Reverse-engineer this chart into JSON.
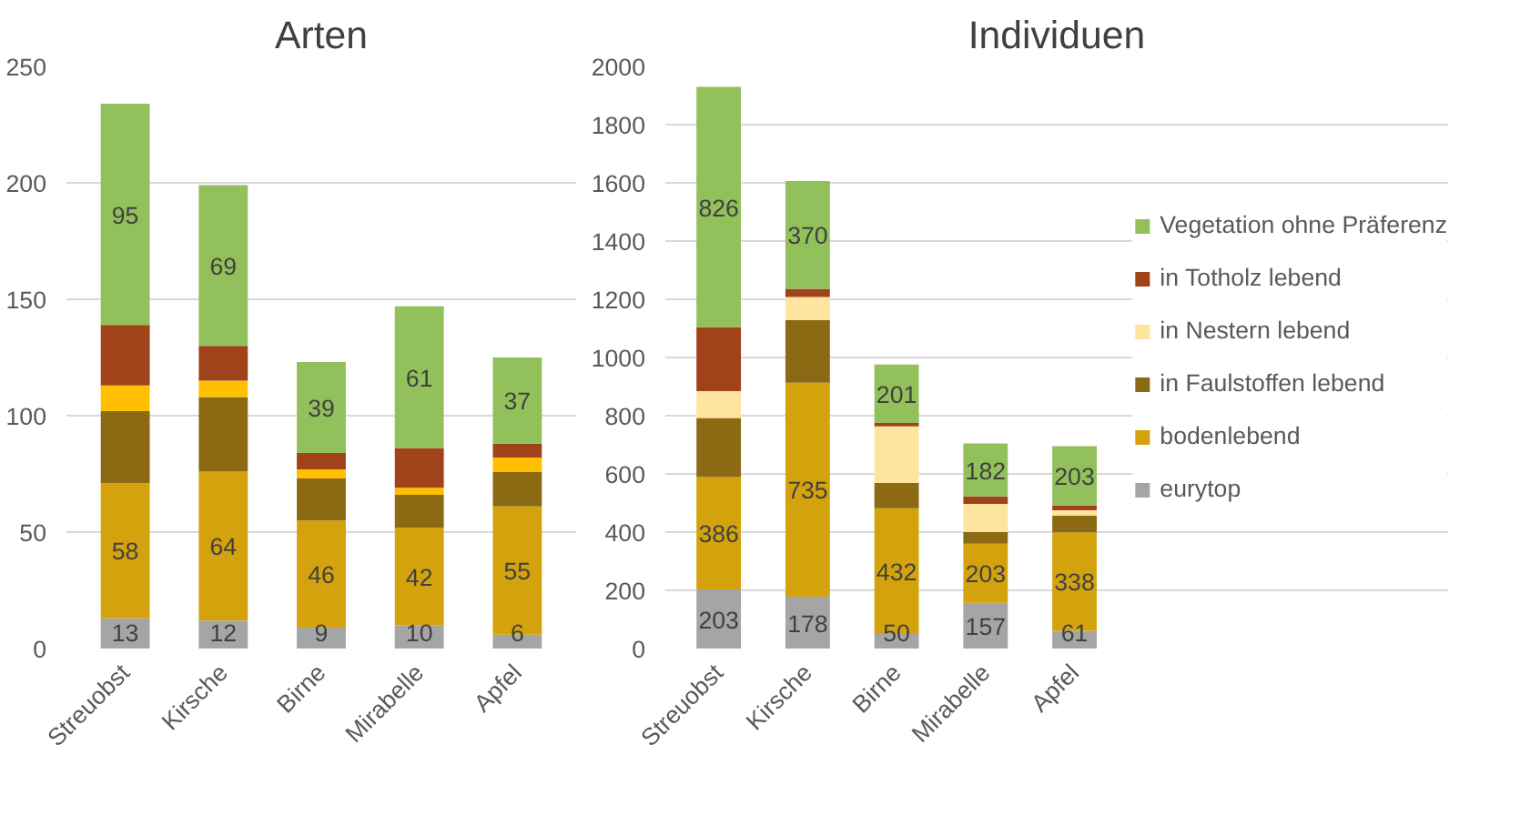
{
  "chart_data": [
    {
      "type": "bar",
      "title": "Arten",
      "stacked": true,
      "grid": "y",
      "categories": [
        "Streuobst",
        "Kirsche",
        "Birne",
        "Mirabelle",
        "Apfel"
      ],
      "ylim": [
        0,
        250
      ],
      "yticks": [
        0,
        50,
        100,
        150,
        200,
        250
      ],
      "series": [
        {
          "color": "#a5a5a5",
          "values": [
            13,
            12,
            9,
            10,
            6
          ],
          "value_labels": [
            "13",
            "12",
            "9",
            "10",
            "6"
          ]
        },
        {
          "color": "#d4a20c",
          "values": [
            58,
            64,
            46,
            42,
            55
          ],
          "value_labels": [
            "58",
            "64",
            "46",
            "42",
            "55"
          ]
        },
        {
          "color": "#8c6a14",
          "values": [
            31,
            32,
            18,
            14,
            15
          ]
        },
        {
          "color": "#ffc000",
          "values": [
            11,
            7,
            4,
            3,
            6
          ]
        },
        {
          "color": "#a0431a",
          "values": [
            26,
            15,
            7,
            17,
            6
          ]
        },
        {
          "color": "#92c05a",
          "values": [
            95,
            69,
            39,
            61,
            37
          ],
          "value_labels": [
            "95",
            "69",
            "39",
            "61",
            "37"
          ]
        }
      ]
    },
    {
      "type": "bar",
      "title": "Individuen",
      "stacked": true,
      "grid": "y",
      "legend": "right",
      "categories": [
        "Streuobst",
        "Kirsche",
        "Birne",
        "Mirabelle",
        "Apfel"
      ],
      "ylim": [
        0,
        2000
      ],
      "yticks": [
        0,
        200,
        400,
        600,
        800,
        1000,
        1200,
        1400,
        1600,
        1800,
        2000
      ],
      "series": [
        {
          "name": "eurytop",
          "color": "#a5a5a5",
          "values": [
            203,
            178,
            50,
            157,
            61
          ],
          "value_labels": [
            "203",
            "178",
            "50",
            "157",
            "61"
          ]
        },
        {
          "name": "bodenlebend",
          "color": "#d4a20c",
          "values": [
            386,
            735,
            432,
            203,
            338
          ],
          "value_labels": [
            "386",
            "735",
            "432",
            "203",
            "338"
          ]
        },
        {
          "name": "in Faulstoffen lebend",
          "color": "#8c6a14",
          "values": [
            203,
            215,
            87,
            41,
            57
          ]
        },
        {
          "name": "in Nestern lebend",
          "color": "#ffe4a0",
          "values": [
            92,
            80,
            194,
            96,
            19
          ]
        },
        {
          "name": "in Totholz lebend",
          "color": "#a0431a",
          "values": [
            220,
            28,
            12,
            26,
            17
          ]
        },
        {
          "name": "Vegetation ohne Präferenz",
          "color": "#92c05a",
          "values": [
            826,
            370,
            201,
            182,
            203
          ],
          "value_labels": [
            "826",
            "370",
            "201",
            "182",
            "203"
          ]
        }
      ]
    }
  ]
}
